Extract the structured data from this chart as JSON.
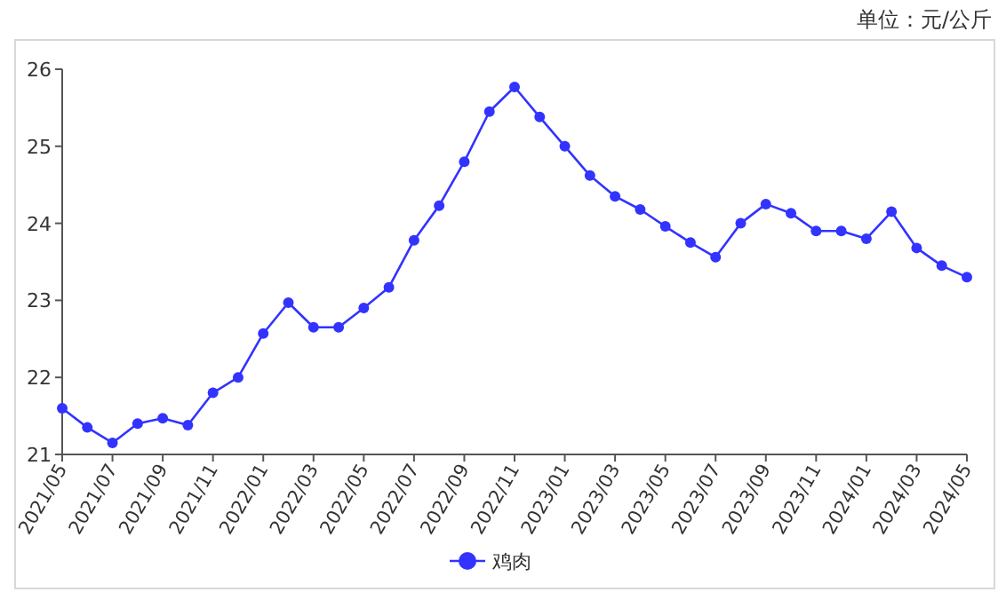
{
  "chart_data": {
    "type": "line",
    "annotations": [
      "单位：元/公斤"
    ],
    "categories": [
      "2021/05",
      null,
      "2021/07",
      null,
      "2021/09",
      null,
      "2021/11",
      null,
      "2022/01",
      null,
      "2022/03",
      null,
      "2022/05",
      null,
      "2022/07",
      null,
      "2022/09",
      null,
      "2022/11",
      null,
      "2023/01",
      null,
      "2023/03",
      null,
      "2023/05",
      null,
      "2023/07",
      null,
      "2023/09",
      null,
      "2023/11",
      null,
      "2024/01",
      null,
      "2024/03",
      null,
      "2024/05"
    ],
    "series": [
      {
        "name": "鸡肉",
        "color": "#3333ff",
        "values": [
          21.6,
          21.35,
          21.15,
          21.4,
          21.47,
          21.38,
          21.8,
          22.0,
          22.57,
          22.97,
          22.65,
          22.65,
          22.9,
          23.17,
          23.78,
          24.23,
          24.8,
          25.45,
          25.77,
          25.38,
          25.0,
          24.62,
          24.35,
          24.18,
          23.96,
          23.75,
          23.56,
          24.0,
          24.25,
          24.13,
          23.9,
          23.9,
          23.8,
          24.15,
          23.68,
          23.45,
          23.3
        ]
      }
    ],
    "ylim": [
      21,
      26
    ],
    "yticks": [
      21,
      22,
      23,
      24,
      25,
      26
    ],
    "grid": false,
    "legend": "bottom",
    "marker": "circle",
    "line_style": "solid"
  }
}
